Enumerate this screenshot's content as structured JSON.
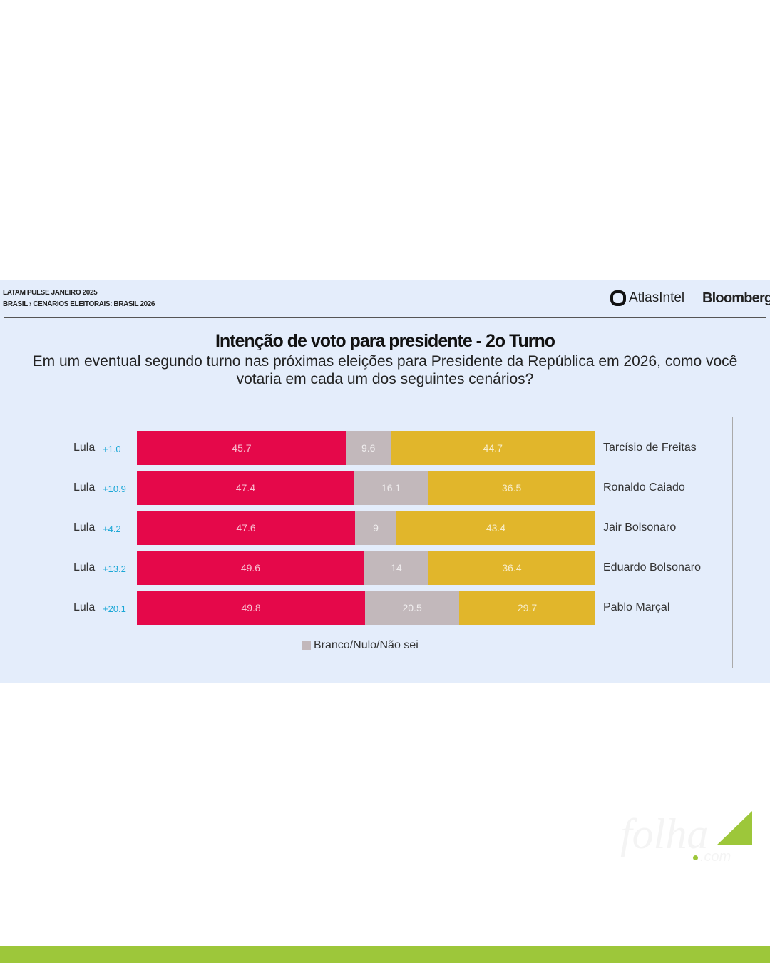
{
  "header": {
    "line1": "LATAM PULSE JANEIRO 2025",
    "line2": "BRASIL › CENÁRIOS ELEITORAIS: BRASIL 2026",
    "brand1": "AtlasIntel",
    "brand2": "Bloomberg"
  },
  "chart_data": {
    "type": "bar",
    "stacked": true,
    "orientation": "horizontal",
    "title": "Intenção de voto para presidente - 2o Turno",
    "subtitle": "Em um eventual segundo turno nas próximas eleições para Presidente da República em 2026, como você votaria em cada um dos seguintes cenários?",
    "rows": [
      {
        "left": "Lula",
        "delta": "+1.0",
        "right": "Tarcísio de Freitas",
        "values": [
          45.7,
          9.6,
          44.7
        ]
      },
      {
        "left": "Lula",
        "delta": "+10.9",
        "right": "Ronaldo Caiado",
        "values": [
          47.4,
          16.1,
          36.5
        ]
      },
      {
        "left": "Lula",
        "delta": "+4.2",
        "right": "Jair Bolsonaro",
        "values": [
          47.6,
          9,
          43.4
        ]
      },
      {
        "left": "Lula",
        "delta": "+13.2",
        "right": "Eduardo Bolsonaro",
        "values": [
          49.6,
          14,
          36.4
        ]
      },
      {
        "left": "Lula",
        "delta": "+20.1",
        "right": "Pablo Marçal",
        "values": [
          49.8,
          20.5,
          29.7
        ]
      }
    ],
    "series_colors": [
      "#e5084a",
      "#c2b8bb",
      "#e1b62b"
    ],
    "legend": "Branco/Nulo/Não sei",
    "xlim": [
      0,
      100
    ]
  },
  "logo": {
    "text": "folha",
    "suffix": ".com"
  }
}
